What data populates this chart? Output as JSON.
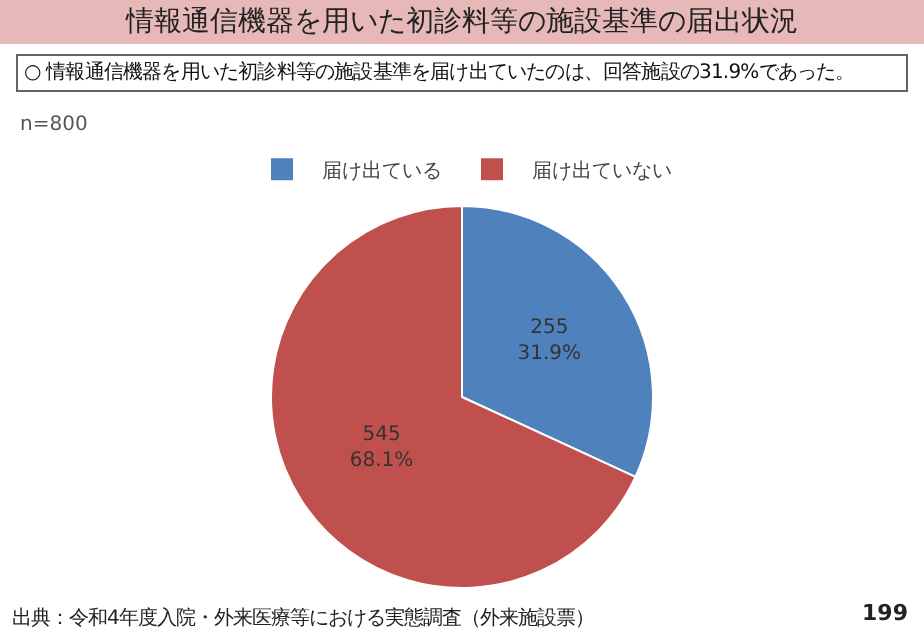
{
  "chart_data": {
    "type": "pie",
    "title": "情報通信機器を用いた初診料等の施設基準の届出状況",
    "subtitle": "○ 情報通信機器を用いた初診料等の施設基準を届け出ていたのは、回答施設の31.9%であった。",
    "categories": [
      "届け出ている",
      "届け出ていない"
    ],
    "values": [
      255,
      545
    ],
    "value_labels": [
      "255\n31.9%",
      "545\n68.1%"
    ],
    "colors": [
      "#4f81bd",
      "#c0504d"
    ],
    "legend": "top",
    "annotations": [
      "n=800",
      "出典：令和4年度入院・外来医療等における実態調査（外来施設票）",
      "199"
    ]
  }
}
